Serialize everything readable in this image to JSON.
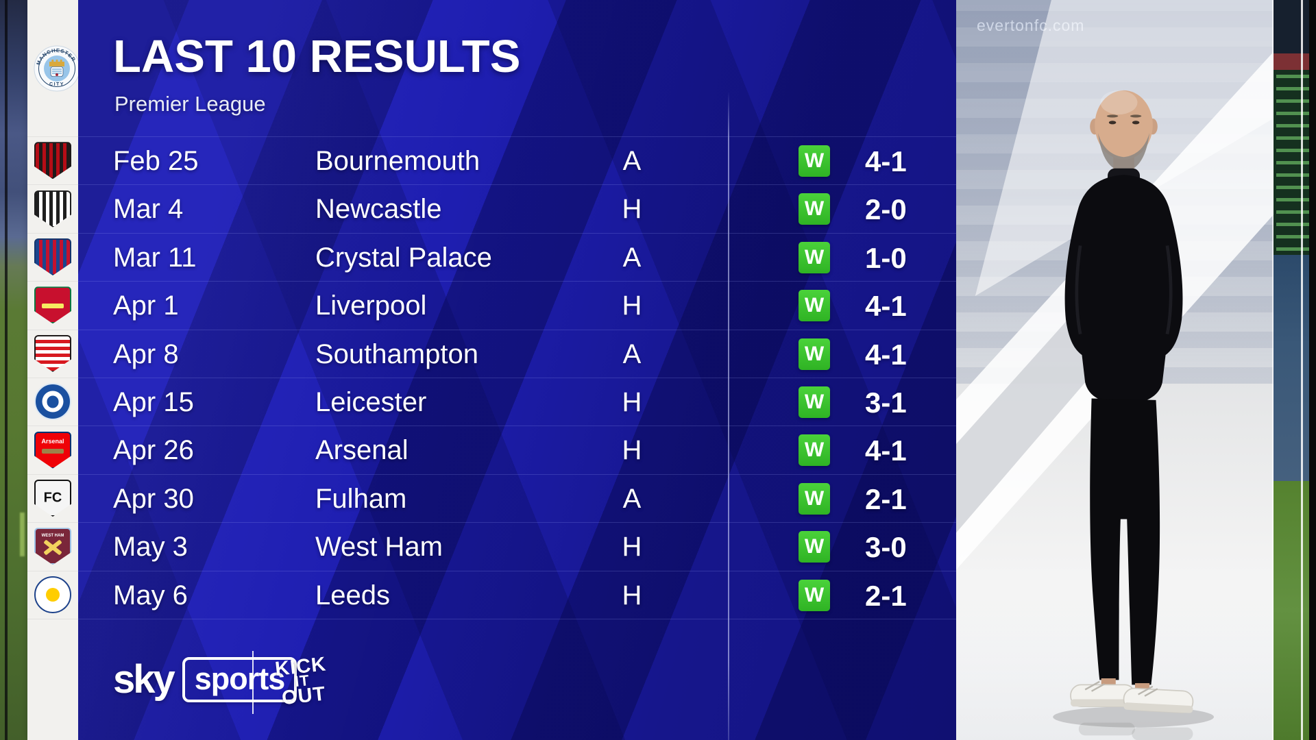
{
  "header": {
    "title": "LAST 10 RESULTS",
    "subtitle": "Premier League"
  },
  "club": {
    "name": "Manchester City",
    "badge_ring_text": "MANCHESTER",
    "badge_bottom_text": "CITY"
  },
  "results": [
    {
      "date": "Feb 25",
      "opponent": "Bournemouth",
      "venue": "A",
      "outcome": "W",
      "score": "4-1",
      "badge": {
        "shape": "shield",
        "style": "stripes",
        "angle": 90,
        "colors": [
          "#b50d16",
          "#1f1a1a"
        ],
        "border": "#1f1a1a"
      }
    },
    {
      "date": "Mar 4",
      "opponent": "Newcastle",
      "venue": "H",
      "outcome": "W",
      "score": "2-0",
      "badge": {
        "shape": "shield",
        "style": "stripes",
        "angle": 90,
        "colors": [
          "#1f1f1f",
          "#ffffff"
        ],
        "border": "#1f1f1f"
      }
    },
    {
      "date": "Mar 11",
      "opponent": "Crystal Palace",
      "venue": "A",
      "outcome": "W",
      "score": "1-0",
      "badge": {
        "shape": "shield",
        "style": "stripes",
        "angle": 90,
        "colors": [
          "#1b458f",
          "#c4122e"
        ],
        "border": "#14366e"
      }
    },
    {
      "date": "Apr 1",
      "opponent": "Liverpool",
      "venue": "H",
      "outcome": "W",
      "score": "4-1",
      "badge": {
        "shape": "shield",
        "style": "solid",
        "colors": [
          "#c8102e"
        ],
        "border": "#0b7a43",
        "accent": "#f6eb61",
        "accent_type": "bar"
      }
    },
    {
      "date": "Apr 8",
      "opponent": "Southampton",
      "venue": "A",
      "outcome": "W",
      "score": "4-1",
      "badge": {
        "shape": "shield",
        "style": "stripes",
        "angle": 0,
        "colors": [
          "#d71920",
          "#ffffff"
        ],
        "border": "#1f1a1a"
      }
    },
    {
      "date": "Apr 15",
      "opponent": "Leicester",
      "venue": "H",
      "outcome": "W",
      "score": "3-1",
      "badge": {
        "shape": "circle",
        "style": "solid",
        "colors": [
          "#1a50a0"
        ],
        "border": "#dce8f4",
        "accent": "#ffffff",
        "accent_type": "ring"
      }
    },
    {
      "date": "Apr 26",
      "opponent": "Arsenal",
      "venue": "H",
      "outcome": "W",
      "score": "4-1",
      "badge": {
        "shape": "shield",
        "style": "solid",
        "colors": [
          "#ef0107"
        ],
        "border": "#023474",
        "accent": "#9c824a",
        "accent_type": "bar",
        "text": "Arsenal",
        "text_color": "#ffffff",
        "text_size": 9,
        "text_pos": "top"
      }
    },
    {
      "date": "Apr 30",
      "opponent": "Fulham",
      "venue": "A",
      "outcome": "W",
      "score": "2-1",
      "badge": {
        "shape": "shield",
        "style": "solid",
        "colors": [
          "#f5f5f5"
        ],
        "border": "#111111",
        "text": "FC",
        "text_color": "#111111",
        "text_size": 20,
        "text_pos": "center"
      }
    },
    {
      "date": "May 3",
      "opponent": "West Ham",
      "venue": "H",
      "outcome": "W",
      "score": "3-0",
      "badge": {
        "shape": "shield",
        "style": "solid",
        "colors": [
          "#7a263a"
        ],
        "border": "#9cc3e8",
        "accent": "#f2d25e",
        "accent_type": "cross",
        "text": "WEST HAM",
        "text_color": "#ffffff",
        "text_size": 6,
        "text_pos": "top"
      }
    },
    {
      "date": "May 6",
      "opponent": "Leeds",
      "venue": "H",
      "outcome": "W",
      "score": "2-1",
      "badge": {
        "shape": "circle",
        "style": "solid",
        "colors": [
          "#ffffff"
        ],
        "border": "#1d428a",
        "accent": "#ffcd00",
        "accent_type": "dot"
      }
    }
  ],
  "footer": {
    "sky": "sky",
    "sports": "sports",
    "kick_it_out": [
      "KICK",
      "IT",
      "OUT"
    ]
  },
  "background": {
    "watermark": "evertonfc.com"
  },
  "colors": {
    "win_green": "#3ec52e",
    "panel_blue": "#1e1eb0",
    "strip_white": "#f2f1ee",
    "text_white": "#ffffff"
  }
}
